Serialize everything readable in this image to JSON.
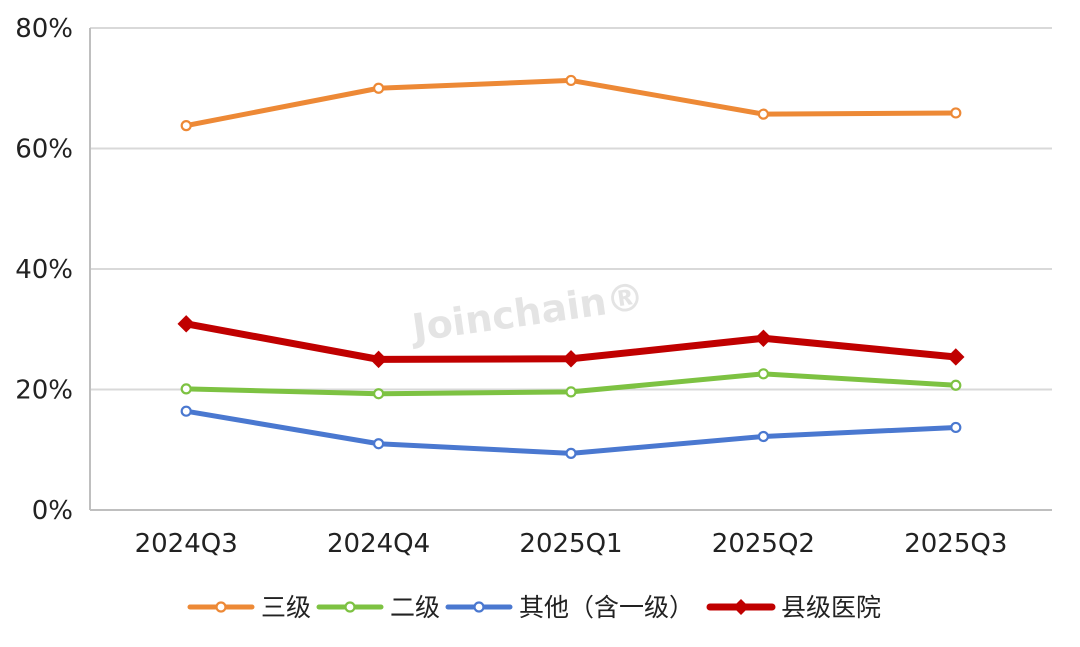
{
  "chart_data": {
    "type": "line",
    "categories": [
      "2024Q3",
      "2024Q4",
      "2025Q1",
      "2025Q2",
      "2025Q3"
    ],
    "series": [
      {
        "name": "三级",
        "values": [
          63.8,
          70.0,
          71.3,
          65.7,
          65.9
        ],
        "color": "#ED8936",
        "marker": "circle"
      },
      {
        "name": "二级",
        "values": [
          20.1,
          19.3,
          19.6,
          22.6,
          20.7
        ],
        "color": "#7DC242",
        "marker": "circle"
      },
      {
        "name": "其他（含一级）",
        "values": [
          16.4,
          11.0,
          9.4,
          12.2,
          13.7
        ],
        "color": "#4A78D0",
        "marker": "circle"
      },
      {
        "name": "县级医院",
        "values": [
          30.9,
          25.0,
          25.1,
          28.5,
          25.4
        ],
        "color": "#C00000",
        "marker": "diamond"
      }
    ],
    "ylim": [
      0,
      80
    ],
    "yticks": [
      0,
      20,
      40,
      60,
      80
    ],
    "ytick_labels": [
      "0%",
      "20%",
      "40%",
      "60%",
      "80%"
    ],
    "unit": "%",
    "grid": true,
    "legend_position": "bottom",
    "watermark": "Joinchain®"
  }
}
